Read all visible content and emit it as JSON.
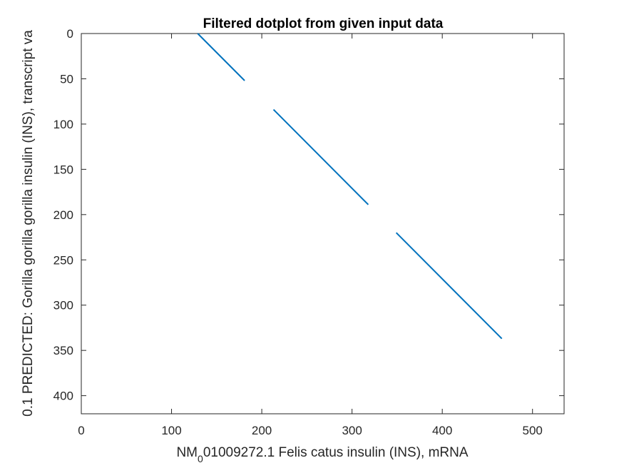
{
  "chart_data": {
    "type": "line",
    "title": "Filtered dotplot from given input data",
    "xlabel": {
      "before_subscript": "NM",
      "subscript": "0",
      "after_subscript": "01009272.1 Felis catus insulin (INS), mRNA"
    },
    "ylabel": "0.1 PREDICTED: Gorilla gorilla gorilla insulin (INS), transcript va",
    "xlim": [
      0,
      535
    ],
    "ylim": [
      0,
      420
    ],
    "y_reversed": true,
    "grid": false,
    "x_ticks": [
      0,
      100,
      200,
      300,
      400,
      500
    ],
    "y_ticks": [
      0,
      50,
      100,
      150,
      200,
      250,
      300,
      350,
      400
    ],
    "line_color": "#0072BD",
    "series": [
      {
        "x": [
          129,
          181
        ],
        "y": [
          0,
          52
        ]
      },
      {
        "x": [
          213,
          318
        ],
        "y": [
          84,
          189
        ]
      },
      {
        "x": [
          349,
          466
        ],
        "y": [
          220,
          337
        ]
      }
    ]
  }
}
